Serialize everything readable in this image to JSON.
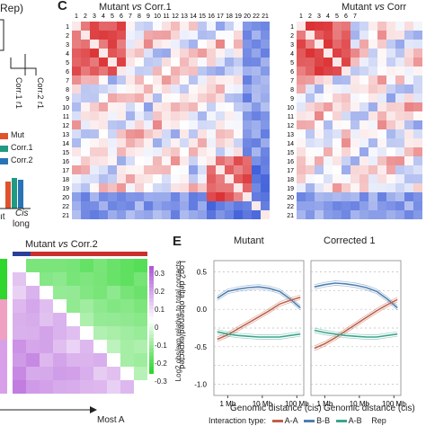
{
  "panel_c": {
    "letter": "C",
    "left_title_prefix": "Mutant",
    "left_title_vs": "vs",
    "left_title_suffix": "Corr.1",
    "right_title_prefix": "Mutant",
    "right_title_vs": "vs",
    "right_title_suffix": "Corr",
    "col_labels_left": [
      "1",
      "2",
      "3",
      "4",
      "5",
      "6",
      "7",
      "8",
      "9",
      "10",
      "11",
      "12",
      "13",
      "14",
      "15",
      "16",
      "17",
      "18",
      "19",
      "20",
      "22",
      "21"
    ],
    "col_labels_right": [
      "1",
      "2",
      "3",
      "4",
      "5",
      "6",
      "7"
    ],
    "row_labels": [
      "1",
      "2",
      "3",
      "4",
      "5",
      "6",
      "7",
      "8",
      "9",
      "10",
      "11",
      "12",
      "13",
      "14",
      "15",
      "16",
      "17",
      "18",
      "19",
      "20",
      "22",
      "21"
    ],
    "colors": {
      "red": "#d7191c",
      "white": "#ffffff",
      "blue": "#2c4fd6"
    }
  },
  "panel_a_fragment": {
    "top_label": "Rep)",
    "tree_labels": [
      "Corr.1 r1",
      "Corr.2 r1"
    ]
  },
  "panel_b_fragment": {
    "legend": [
      {
        "label": "Mut",
        "color": "#e0522b"
      },
      {
        "label": "Corr.1",
        "color": "#1f9a83"
      },
      {
        "label": "Corr.2",
        "color": "#2a74b5"
      }
    ],
    "xlabel_left": "ıt",
    "xlabel_cis": "Cis",
    "xlabel_long": "long"
  },
  "panel_d": {
    "title_prefix": "Mutant",
    "title_vs": "vs",
    "title_suffix": "Corr.2",
    "colorbar_ticks": [
      "0.3",
      "0.2",
      "0.1",
      "0",
      "-0.1",
      "-0.2",
      "-0.3"
    ],
    "colorbar_label": "Log2 delta observed/expected",
    "bottom_label": "Most A",
    "colors": {
      "pos": "#b05ad8",
      "neg": "#2ed62e",
      "mid": "#ffffff"
    }
  },
  "panel_e": {
    "letter": "E",
    "facets": [
      "Mutant",
      "Corrected 1"
    ],
    "ylabel": "Log2 obs/exp relative to total contacts",
    "y_ticks": [
      "0.5",
      "0.0",
      "-0.5",
      "-1.0"
    ],
    "x_ticks": [
      "1 Mb",
      "10 Mb",
      "100 Mb"
    ],
    "xlabel": "Genomic distance (cis)",
    "legend_title": "Interaction type:",
    "legend": [
      {
        "label": "A-A",
        "color": "#c0614a"
      },
      {
        "label": "B-B",
        "color": "#4f7fb0"
      },
      {
        "label": "A-B",
        "color": "#3aa58c"
      }
    ],
    "legend_trailing": "Rep"
  },
  "chart_data": {
    "type": "line",
    "facets": [
      "Mutant",
      "Corrected 1"
    ],
    "xlabel": "Genomic distance (cis)",
    "ylabel": "Log2 obs/exp relative to total contacts",
    "x_log10_mb": [
      -0.3,
      0.0,
      0.3,
      0.6,
      0.9,
      1.2,
      1.5,
      1.8,
      2.1
    ],
    "ylim": [
      -1.15,
      0.65
    ],
    "series": [
      {
        "name": "B-B",
        "facet": "Mutant",
        "values": [
          0.15,
          0.24,
          0.27,
          0.29,
          0.3,
          0.28,
          0.24,
          0.14,
          0.02
        ]
      },
      {
        "name": "A-A",
        "facet": "Mutant",
        "values": [
          -0.4,
          -0.34,
          -0.26,
          -0.18,
          -0.1,
          -0.02,
          0.07,
          0.12,
          0.16
        ]
      },
      {
        "name": "A-B",
        "facet": "Mutant",
        "values": [
          -0.3,
          -0.33,
          -0.35,
          -0.36,
          -0.37,
          -0.37,
          -0.37,
          -0.35,
          -0.33
        ]
      },
      {
        "name": "B-B",
        "facet": "Corrected 1",
        "values": [
          0.3,
          0.33,
          0.35,
          0.34,
          0.32,
          0.29,
          0.24,
          0.14,
          0.02
        ]
      },
      {
        "name": "A-A",
        "facet": "Corrected 1",
        "values": [
          -0.52,
          -0.46,
          -0.38,
          -0.29,
          -0.2,
          -0.11,
          -0.02,
          0.06,
          0.13
        ]
      },
      {
        "name": "A-B",
        "facet": "Corrected 1",
        "values": [
          -0.28,
          -0.31,
          -0.33,
          -0.35,
          -0.36,
          -0.37,
          -0.37,
          -0.35,
          -0.33
        ]
      }
    ]
  }
}
